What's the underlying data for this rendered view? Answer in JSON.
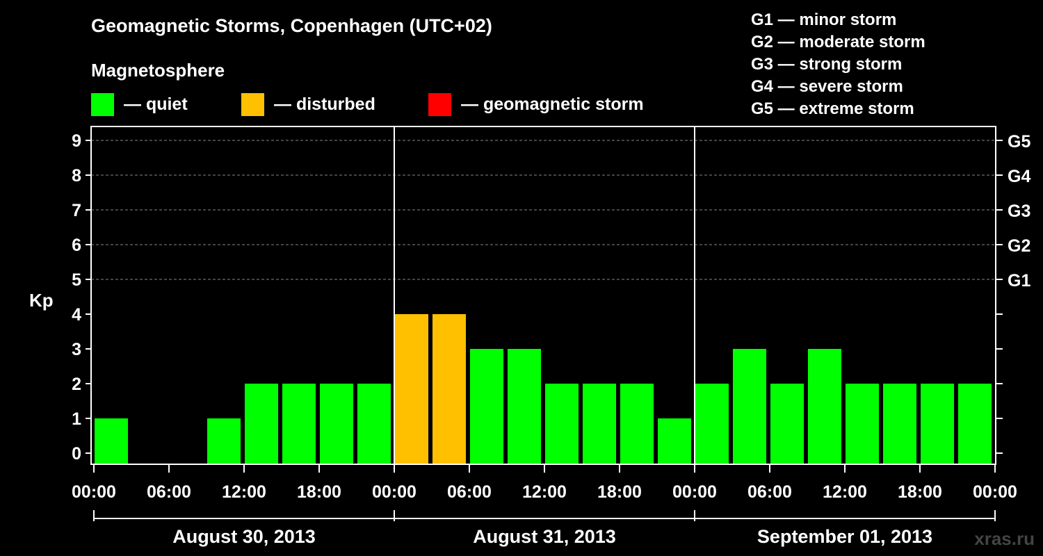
{
  "chart_data": {
    "type": "bar",
    "title": "Geomagnetic Storms, Copenhagen (UTC+02)",
    "legend_heading": "Magnetosphere",
    "legend": [
      {
        "label": "— quiet",
        "color": "#00ff00"
      },
      {
        "label": "— disturbed",
        "color": "#ffc000"
      },
      {
        "label": "— geomagnetic storm",
        "color": "#ff0000"
      }
    ],
    "storm_scale": [
      "G1 — minor storm",
      "G2 — moderate storm",
      "G3 — strong storm",
      "G4 — severe storm",
      "G5 — extreme storm"
    ],
    "ylabel": "Kp",
    "ylim": [
      0,
      9
    ],
    "yticks": [
      0,
      1,
      2,
      3,
      4,
      5,
      6,
      7,
      8,
      9
    ],
    "right_ticks": [
      {
        "kp": 5,
        "label": "G1"
      },
      {
        "kp": 6,
        "label": "G2"
      },
      {
        "kp": 7,
        "label": "G3"
      },
      {
        "kp": 8,
        "label": "G4"
      },
      {
        "kp": 9,
        "label": "G5"
      }
    ],
    "grid": true,
    "xticks": [
      "00:00",
      "06:00",
      "12:00",
      "18:00",
      "00:00",
      "06:00",
      "12:00",
      "18:00",
      "00:00",
      "06:00",
      "12:00",
      "18:00",
      "00:00"
    ],
    "days": [
      "August 30, 2013",
      "August 31, 2013",
      "September 01, 2013"
    ],
    "bar_interval_hours": 3,
    "values": [
      1,
      0,
      0,
      1,
      2,
      2,
      2,
      2,
      4,
      4,
      3,
      3,
      2,
      2,
      2,
      1,
      2,
      3,
      2,
      3,
      2,
      2,
      2,
      2
    ],
    "status": [
      "quiet",
      "quiet",
      "quiet",
      "quiet",
      "quiet",
      "quiet",
      "quiet",
      "quiet",
      "disturbed",
      "disturbed",
      "quiet",
      "quiet",
      "quiet",
      "quiet",
      "quiet",
      "quiet",
      "quiet",
      "quiet",
      "quiet",
      "quiet",
      "quiet",
      "quiet",
      "quiet",
      "quiet"
    ],
    "colors": {
      "quiet": "#00ff00",
      "disturbed": "#ffc000",
      "storm": "#ff0000"
    }
  },
  "watermark": "xras.ru"
}
